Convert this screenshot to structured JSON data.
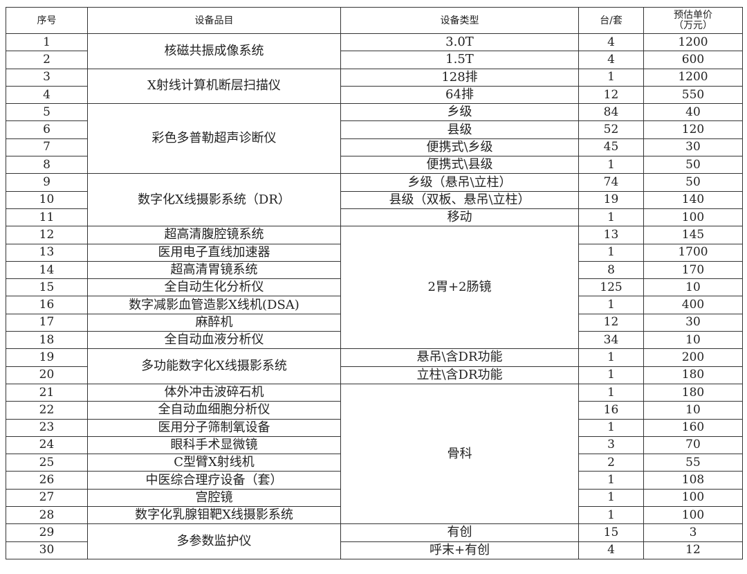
{
  "header": {
    "no": "序号",
    "name": "设备品目",
    "type": "设备类型",
    "qty": "台/套",
    "price_line1": "预估单价",
    "price_line2": "（万元）"
  },
  "rows": [
    {
      "no": "1",
      "qty": "4",
      "price": "1200"
    },
    {
      "no": "2",
      "qty": "4",
      "price": "600"
    },
    {
      "no": "3",
      "qty": "1",
      "price": "1200"
    },
    {
      "no": "4",
      "qty": "12",
      "price": "550"
    },
    {
      "no": "5",
      "qty": "84",
      "price": "40"
    },
    {
      "no": "6",
      "qty": "52",
      "price": "120"
    },
    {
      "no": "7",
      "qty": "45",
      "price": "30"
    },
    {
      "no": "8",
      "qty": "1",
      "price": "50"
    },
    {
      "no": "9",
      "qty": "74",
      "price": "50"
    },
    {
      "no": "10",
      "qty": "19",
      "price": "140"
    },
    {
      "no": "11",
      "qty": "1",
      "price": "100"
    },
    {
      "no": "12",
      "qty": "13",
      "price": "145"
    },
    {
      "no": "13",
      "qty": "1",
      "price": "1700"
    },
    {
      "no": "14",
      "qty": "8",
      "price": "170"
    },
    {
      "no": "15",
      "qty": "125",
      "price": "10"
    },
    {
      "no": "16",
      "qty": "1",
      "price": "400"
    },
    {
      "no": "17",
      "qty": "12",
      "price": "30"
    },
    {
      "no": "18",
      "qty": "34",
      "price": "10"
    },
    {
      "no": "19",
      "qty": "1",
      "price": "200"
    },
    {
      "no": "20",
      "qty": "1",
      "price": "180"
    },
    {
      "no": "21",
      "qty": "1",
      "price": "180"
    },
    {
      "no": "22",
      "qty": "16",
      "price": "10"
    },
    {
      "no": "23",
      "qty": "1",
      "price": "160"
    },
    {
      "no": "24",
      "qty": "3",
      "price": "70"
    },
    {
      "no": "25",
      "qty": "2",
      "price": "55"
    },
    {
      "no": "26",
      "qty": "1",
      "price": "108"
    },
    {
      "no": "27",
      "qty": "1",
      "price": "100"
    },
    {
      "no": "28",
      "qty": "1",
      "price": "100"
    },
    {
      "no": "29",
      "qty": "15",
      "price": "3"
    },
    {
      "no": "30",
      "qty": "4",
      "price": "12"
    }
  ],
  "name_cells": [
    {
      "text": "核磁共振成像系统",
      "span": 2
    },
    {
      "text": "X射线计算机断层扫描仪",
      "span": 2
    },
    {
      "text": "彩色多普勒超声诊断仪",
      "span": 4
    },
    {
      "text": "数字化X线摄影系统（DR）",
      "span": 3
    },
    {
      "text": "超高清腹腔镜系统",
      "span": 1
    },
    {
      "text": "医用电子直线加速器",
      "span": 1
    },
    {
      "text": "超高清胃镜系统",
      "span": 1
    },
    {
      "text": "全自动生化分析仪",
      "span": 1
    },
    {
      "text": "数字减影血管造影X线机(DSA)",
      "span": 1
    },
    {
      "text": "麻醉机",
      "span": 1
    },
    {
      "text": "全自动血液分析仪",
      "span": 1
    },
    {
      "text": "多功能数字化X线摄影系统",
      "span": 2
    },
    {
      "text": "体外冲击波碎石机",
      "span": 1
    },
    {
      "text": "全自动血细胞分析仪",
      "span": 1
    },
    {
      "text": "医用分子筛制氧设备",
      "span": 1
    },
    {
      "text": "眼科手术显微镜",
      "span": 1
    },
    {
      "text": "C型臂X射线机",
      "span": 1
    },
    {
      "text": "中医综合理疗设备（套）",
      "span": 1
    },
    {
      "text": "宫腔镜",
      "span": 1
    },
    {
      "text": "数字化乳腺钼靶X线摄影系统",
      "span": 1
    },
    {
      "text": "多参数监护仪",
      "span": 2
    }
  ],
  "type_cells": [
    {
      "text": "3.0T",
      "span": 1
    },
    {
      "text": "1.5T",
      "span": 1
    },
    {
      "text": "128排",
      "span": 1
    },
    {
      "text": "64排",
      "span": 1
    },
    {
      "text": "乡级",
      "span": 1
    },
    {
      "text": "县级",
      "span": 1
    },
    {
      "text": "便携式\\乡级",
      "span": 1
    },
    {
      "text": "便携式\\县级",
      "span": 1
    },
    {
      "text": "乡级（悬吊\\立柱）",
      "span": 1
    },
    {
      "text": "县级（双板、悬吊\\立柱）",
      "span": 1
    },
    {
      "text": "移动",
      "span": 1
    },
    {
      "text": "2胃+2肠镜",
      "span": 7
    },
    {
      "text": "悬吊\\含DR功能",
      "span": 1
    },
    {
      "text": "立柱\\含DR功能",
      "span": 1
    },
    {
      "text": "骨科",
      "span": 8
    },
    {
      "text": "有创",
      "span": 1
    },
    {
      "text": "呼末+有创",
      "span": 1
    }
  ]
}
